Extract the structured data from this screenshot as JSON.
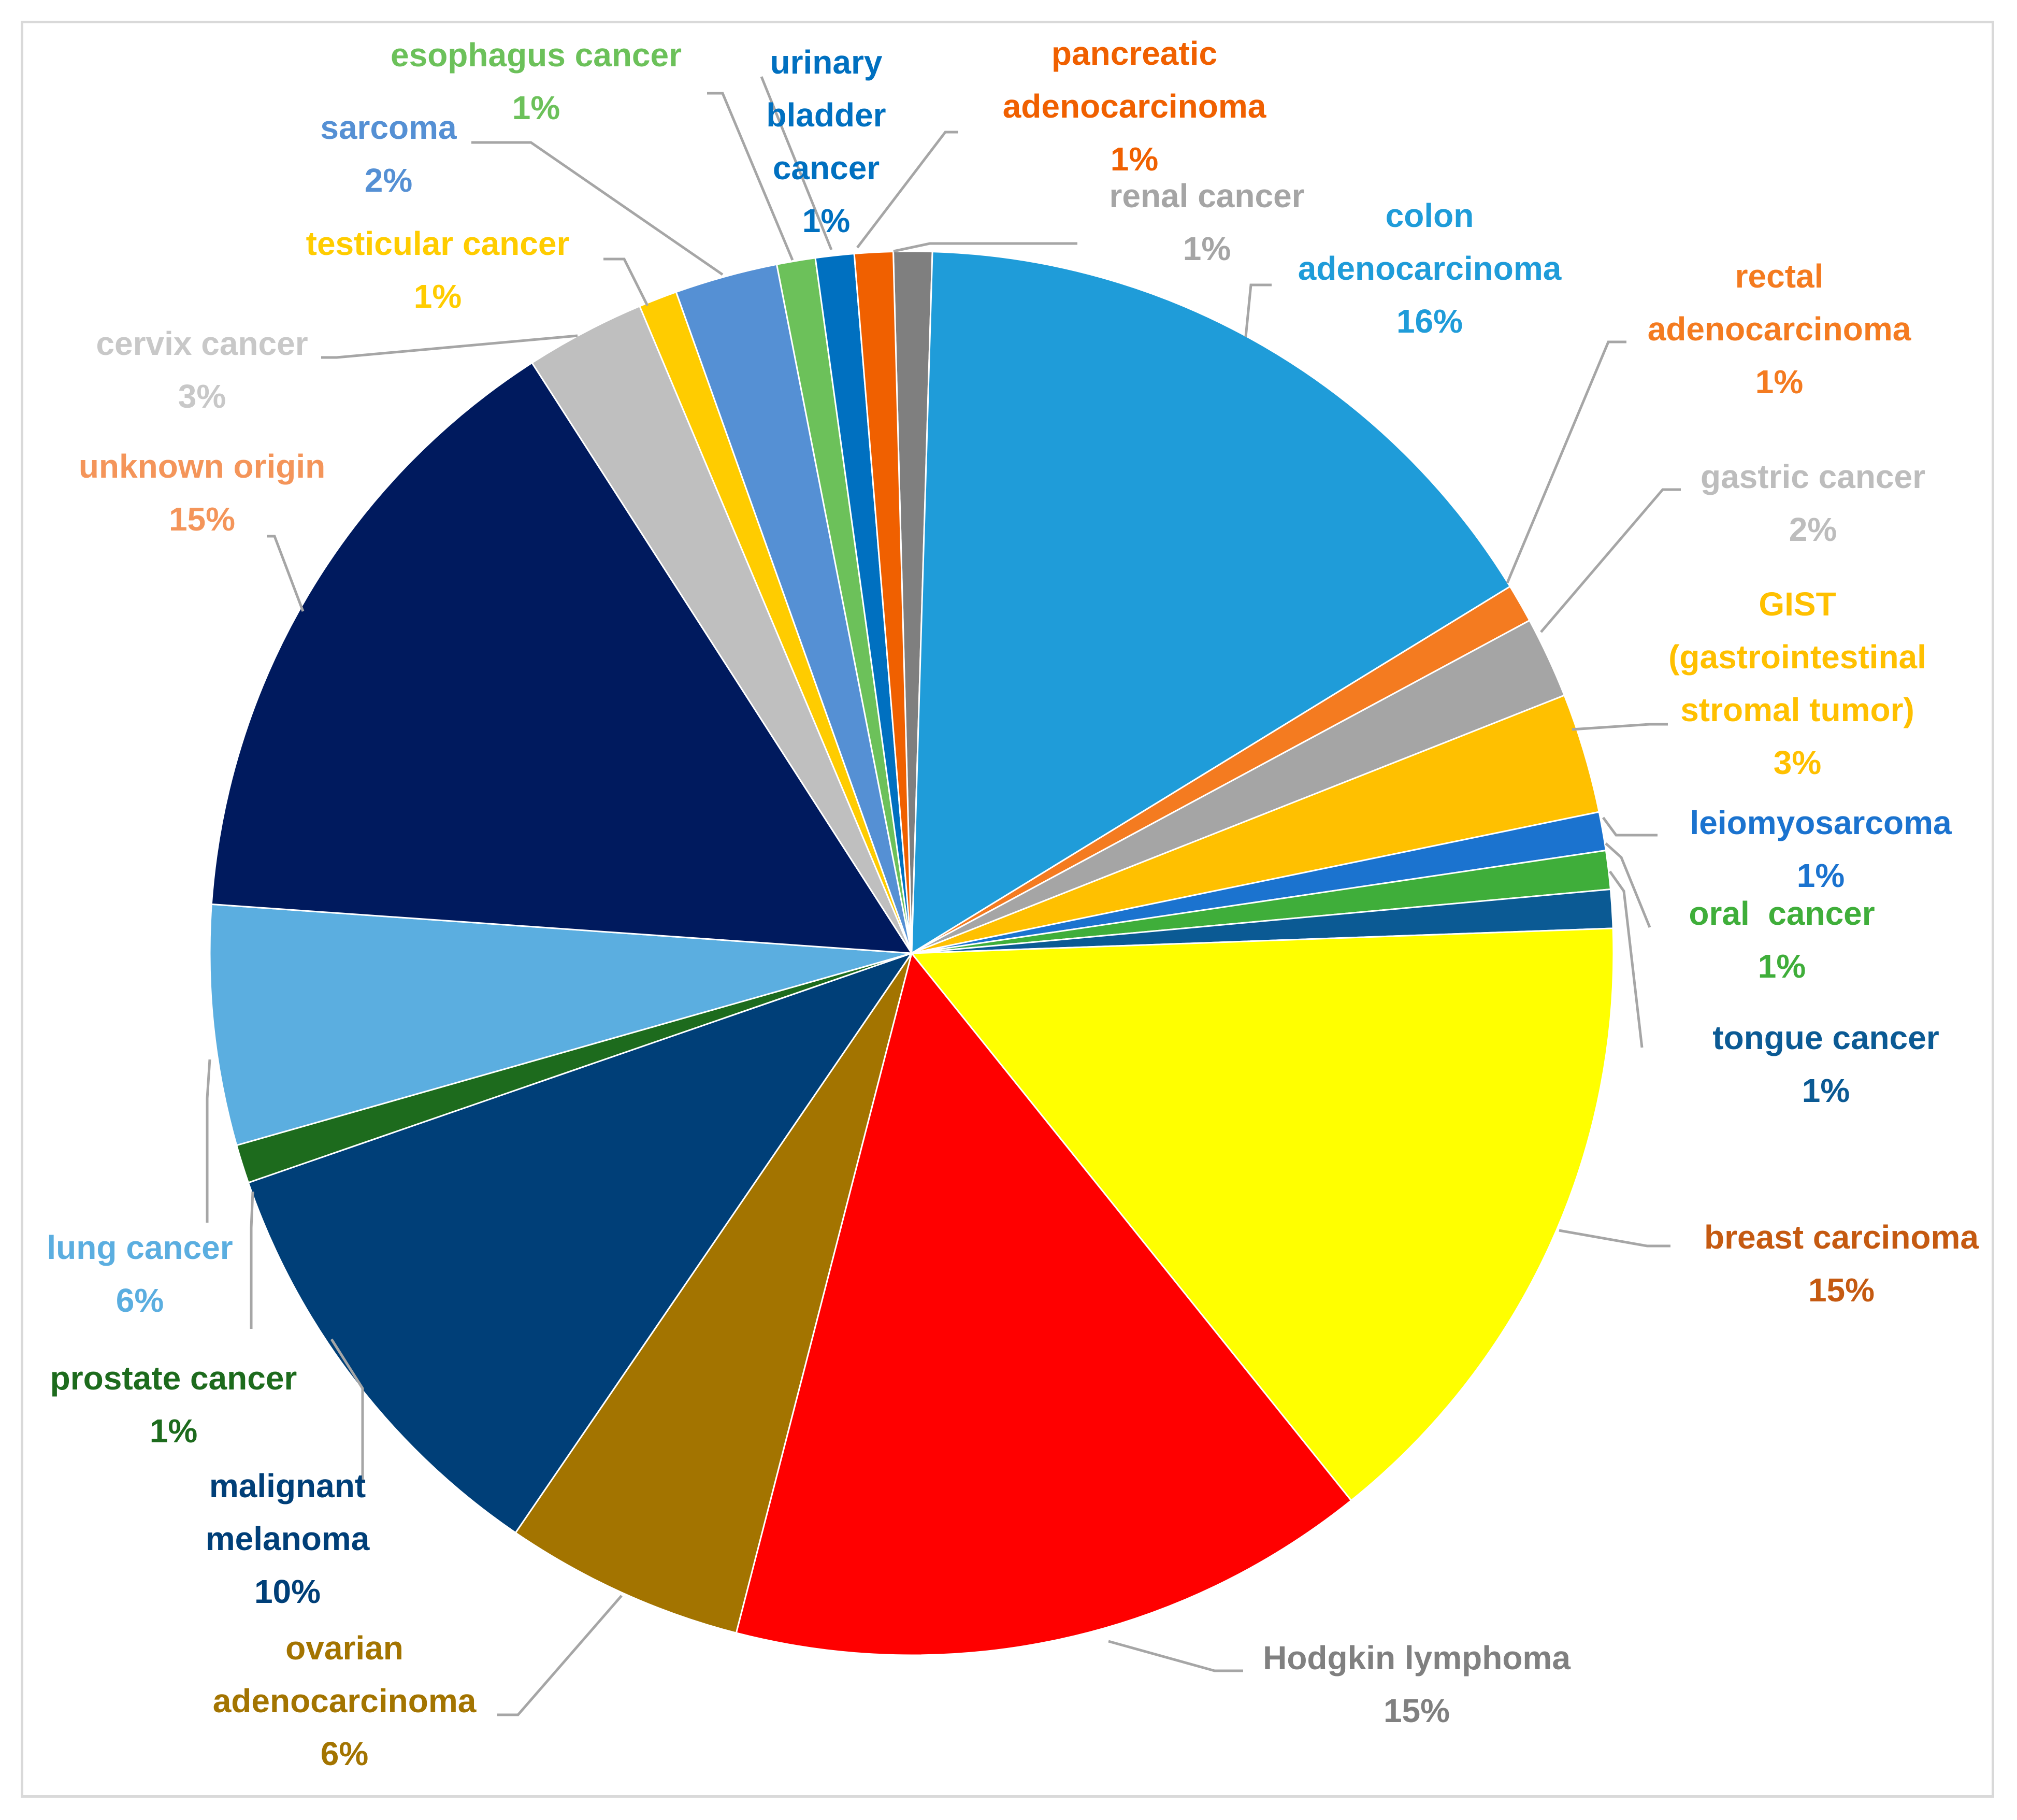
{
  "chart_data": {
    "type": "pie",
    "title": "",
    "slices": [
      {
        "name": "renal cancer",
        "lines": [
          "renal cancer"
        ],
        "pct_label": "1%",
        "value": 0.9,
        "color": "#7f7f7f",
        "label_color": "#a5a5a5"
      },
      {
        "name": "colon adenocarcinoma",
        "lines": [
          "colon",
          "adenocarcinoma"
        ],
        "pct_label": "16%",
        "value": 16.0,
        "color": "#1f9cd9",
        "label_color": "#1f9cd9"
      },
      {
        "name": "rectal adenocarcinoma",
        "lines": [
          "rectal",
          "adenocarcinoma"
        ],
        "pct_label": "1%",
        "value": 0.9,
        "color": "#f47b20",
        "label_color": "#f47b20"
      },
      {
        "name": "gastric cancer",
        "lines": [
          "gastric cancer"
        ],
        "pct_label": "2%",
        "value": 1.9,
        "color": "#a5a5a5",
        "label_color": "#bdbdbd"
      },
      {
        "name": "GIST (gastrointestinal stromal tumor)",
        "lines": [
          "GIST",
          "(gastrointestinal",
          "stromal tumor)"
        ],
        "pct_label": "3%",
        "value": 2.8,
        "color": "#ffc000",
        "label_color": "#ffc000"
      },
      {
        "name": "leiomyosarcoma",
        "lines": [
          "leiomyosarcoma"
        ],
        "pct_label": "1%",
        "value": 0.9,
        "color": "#1b73cf",
        "label_color": "#1b73cf"
      },
      {
        "name": "oral cancer",
        "lines": [
          "oral  cancer"
        ],
        "pct_label": "1%",
        "value": 0.9,
        "color": "#3fae3a",
        "label_color": "#3fae3a"
      },
      {
        "name": "tongue cancer",
        "lines": [
          "tongue cancer"
        ],
        "pct_label": "1%",
        "value": 0.9,
        "color": "#0b5a94",
        "label_color": "#0b5a94"
      },
      {
        "name": "breast carcinoma",
        "lines": [
          "breast carcinoma"
        ],
        "pct_label": "15%",
        "value": 15.0,
        "color": "#ffff00",
        "label_color": "#c55a11"
      },
      {
        "name": "Hodgkin lymphoma",
        "lines": [
          "Hodgkin lymphoma"
        ],
        "pct_label": "15%",
        "value": 15.0,
        "color": "#ff0000",
        "label_color": "#808080"
      },
      {
        "name": "ovarian adenocarcinoma",
        "lines": [
          "ovarian",
          "adenocarcinoma"
        ],
        "pct_label": "6%",
        "value": 5.6,
        "color": "#a37400",
        "label_color": "#a37400"
      },
      {
        "name": "malignant melanoma",
        "lines": [
          "malignant",
          "melanoma"
        ],
        "pct_label": "10%",
        "value": 10.3,
        "color": "#003f78",
        "label_color": "#003f78"
      },
      {
        "name": "prostate cancer",
        "lines": [
          "prostate cancer"
        ],
        "pct_label": "1%",
        "value": 0.9,
        "color": "#1d6b1d",
        "label_color": "#1d6b1d"
      },
      {
        "name": "lung cancer",
        "lines": [
          "lung cancer"
        ],
        "pct_label": "6%",
        "value": 5.6,
        "color": "#5baee0",
        "label_color": "#5baee0"
      },
      {
        "name": "unknown origin",
        "lines": [
          "unknown origin"
        ],
        "pct_label": "15%",
        "value": 15.0,
        "color": "#001a5e",
        "label_color": "#f4955a"
      },
      {
        "name": "cervix cancer",
        "lines": [
          "cervix cancer"
        ],
        "pct_label": "3%",
        "value": 2.8,
        "color": "#bfbfbf",
        "label_color": "#c8c8c8"
      },
      {
        "name": "testicular cancer",
        "lines": [
          "testicular cancer"
        ],
        "pct_label": "1%",
        "value": 0.9,
        "color": "#ffcc00",
        "label_color": "#ffcc00"
      },
      {
        "name": "sarcoma",
        "lines": [
          "sarcoma"
        ],
        "pct_label": "2%",
        "value": 2.4,
        "color": "#5590d4",
        "label_color": "#5590d4"
      },
      {
        "name": "esophagus cancer",
        "lines": [
          "esophagus cancer"
        ],
        "pct_label": "1%",
        "value": 0.9,
        "color": "#6cc15a",
        "label_color": "#6cc15a"
      },
      {
        "name": "urinary bladder cancer",
        "lines": [
          "urinary",
          "bladder",
          "cancer"
        ],
        "pct_label": "1%",
        "value": 0.9,
        "color": "#0070c0",
        "label_color": "#0070c0"
      },
      {
        "name": "pancreatic adenocarcinoma",
        "lines": [
          "pancreatic",
          "adenocarcinoma"
        ],
        "pct_label": "1%",
        "value": 0.9,
        "color": "#f06000",
        "label_color": "#f06000"
      }
    ]
  }
}
